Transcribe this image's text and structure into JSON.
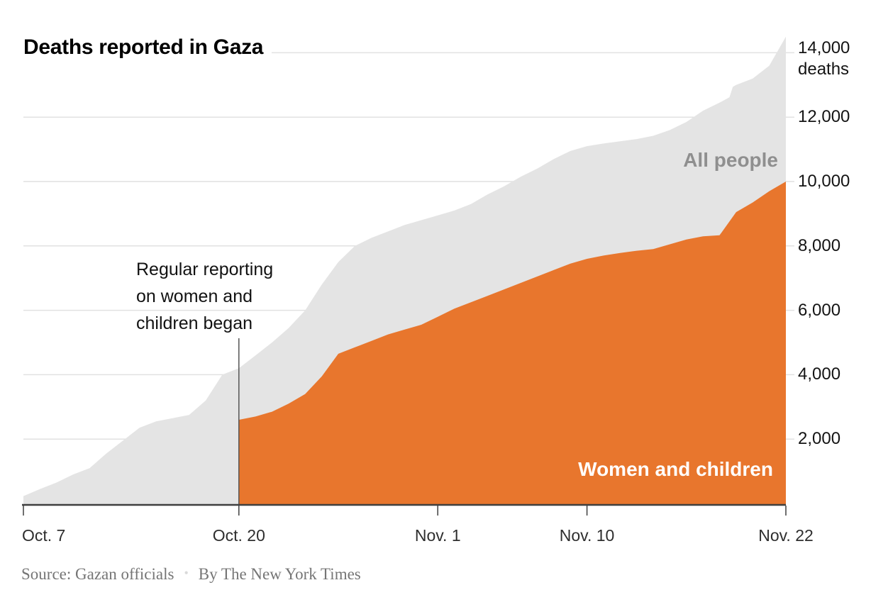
{
  "header": {},
  "footer": {
    "source": "Source: Gazan officials",
    "separator": "•",
    "byline": "By The New York Times"
  },
  "chart_data": {
    "type": "area",
    "title": "Deaths reported in Gaza",
    "x_unit": "days since Oct. 7, 2023",
    "x_range_days": [
      0,
      46
    ],
    "ylim": [
      0,
      14500
    ],
    "grid": true,
    "legend_position": "on-chart",
    "annotation": {
      "day": 13,
      "date": "Oct. 20",
      "text": "Regular reporting\non women and\nchildren began"
    },
    "x_axis": {
      "ticks": [
        {
          "day": 0,
          "label": "Oct. 7"
        },
        {
          "day": 13,
          "label": "Oct. 20"
        },
        {
          "day": 25,
          "label": "Nov. 1"
        },
        {
          "day": 34,
          "label": "Nov. 10"
        },
        {
          "day": 46,
          "label": "Nov. 22"
        }
      ]
    },
    "y_axis": {
      "values": [
        2000,
        4000,
        6000,
        8000,
        10000,
        12000,
        14000
      ],
      "labels": [
        "2,000",
        "4,000",
        "6,000",
        "8,000",
        "10,000",
        "12,000",
        "14,000"
      ],
      "unit": "deaths",
      "unit_value": 14000
    },
    "series": [
      {
        "name": "All people",
        "color": "#E4E4E4",
        "label_color": "#8F8F8F",
        "x": [
          0,
          1,
          2,
          3,
          4,
          5,
          6,
          7,
          8,
          9,
          10,
          11,
          12,
          13,
          14,
          15,
          16,
          17,
          18,
          19,
          20,
          21,
          22,
          23,
          24,
          25,
          26,
          27,
          28,
          29,
          30,
          31,
          32,
          33,
          34,
          35,
          36,
          37,
          38,
          39,
          40,
          41,
          42,
          42.6,
          42.8,
          43,
          44,
          45,
          46
        ],
        "values": [
          230,
          450,
          650,
          900,
          1100,
          1550,
          1950,
          2350,
          2550,
          2650,
          2750,
          3200,
          4000,
          4200,
          4600,
          5000,
          5450,
          6000,
          6800,
          7500,
          8000,
          8250,
          8450,
          8650,
          8800,
          8950,
          9100,
          9300,
          9600,
          9850,
          10150,
          10400,
          10700,
          10950,
          11100,
          11180,
          11250,
          11320,
          11420,
          11600,
          11850,
          12200,
          12450,
          12620,
          12940,
          13000,
          13200,
          13600,
          14500
        ]
      },
      {
        "name": "Women and children",
        "color": "#E8762D",
        "label_color": "#FFFFFF",
        "x": [
          13,
          14,
          15,
          16,
          17,
          18,
          19,
          20,
          21,
          22,
          23,
          24,
          25,
          26,
          27,
          28,
          29,
          30,
          31,
          32,
          33,
          34,
          35,
          36,
          37,
          38,
          39,
          40,
          41,
          42,
          43,
          44,
          45,
          46
        ],
        "values": [
          2600,
          2700,
          2850,
          3100,
          3400,
          3950,
          4650,
          4850,
          5050,
          5250,
          5400,
          5550,
          5800,
          6050,
          6250,
          6450,
          6650,
          6850,
          7050,
          7250,
          7450,
          7600,
          7700,
          7780,
          7850,
          7900,
          8050,
          8200,
          8300,
          8330,
          9050,
          9350,
          9700,
          10000
        ]
      }
    ],
    "style": {
      "gridline_color": "#E1E1E1",
      "axis_color": "#3f3f3f",
      "annotation_line_color": "#555555",
      "background": "#FFFFFF"
    }
  }
}
